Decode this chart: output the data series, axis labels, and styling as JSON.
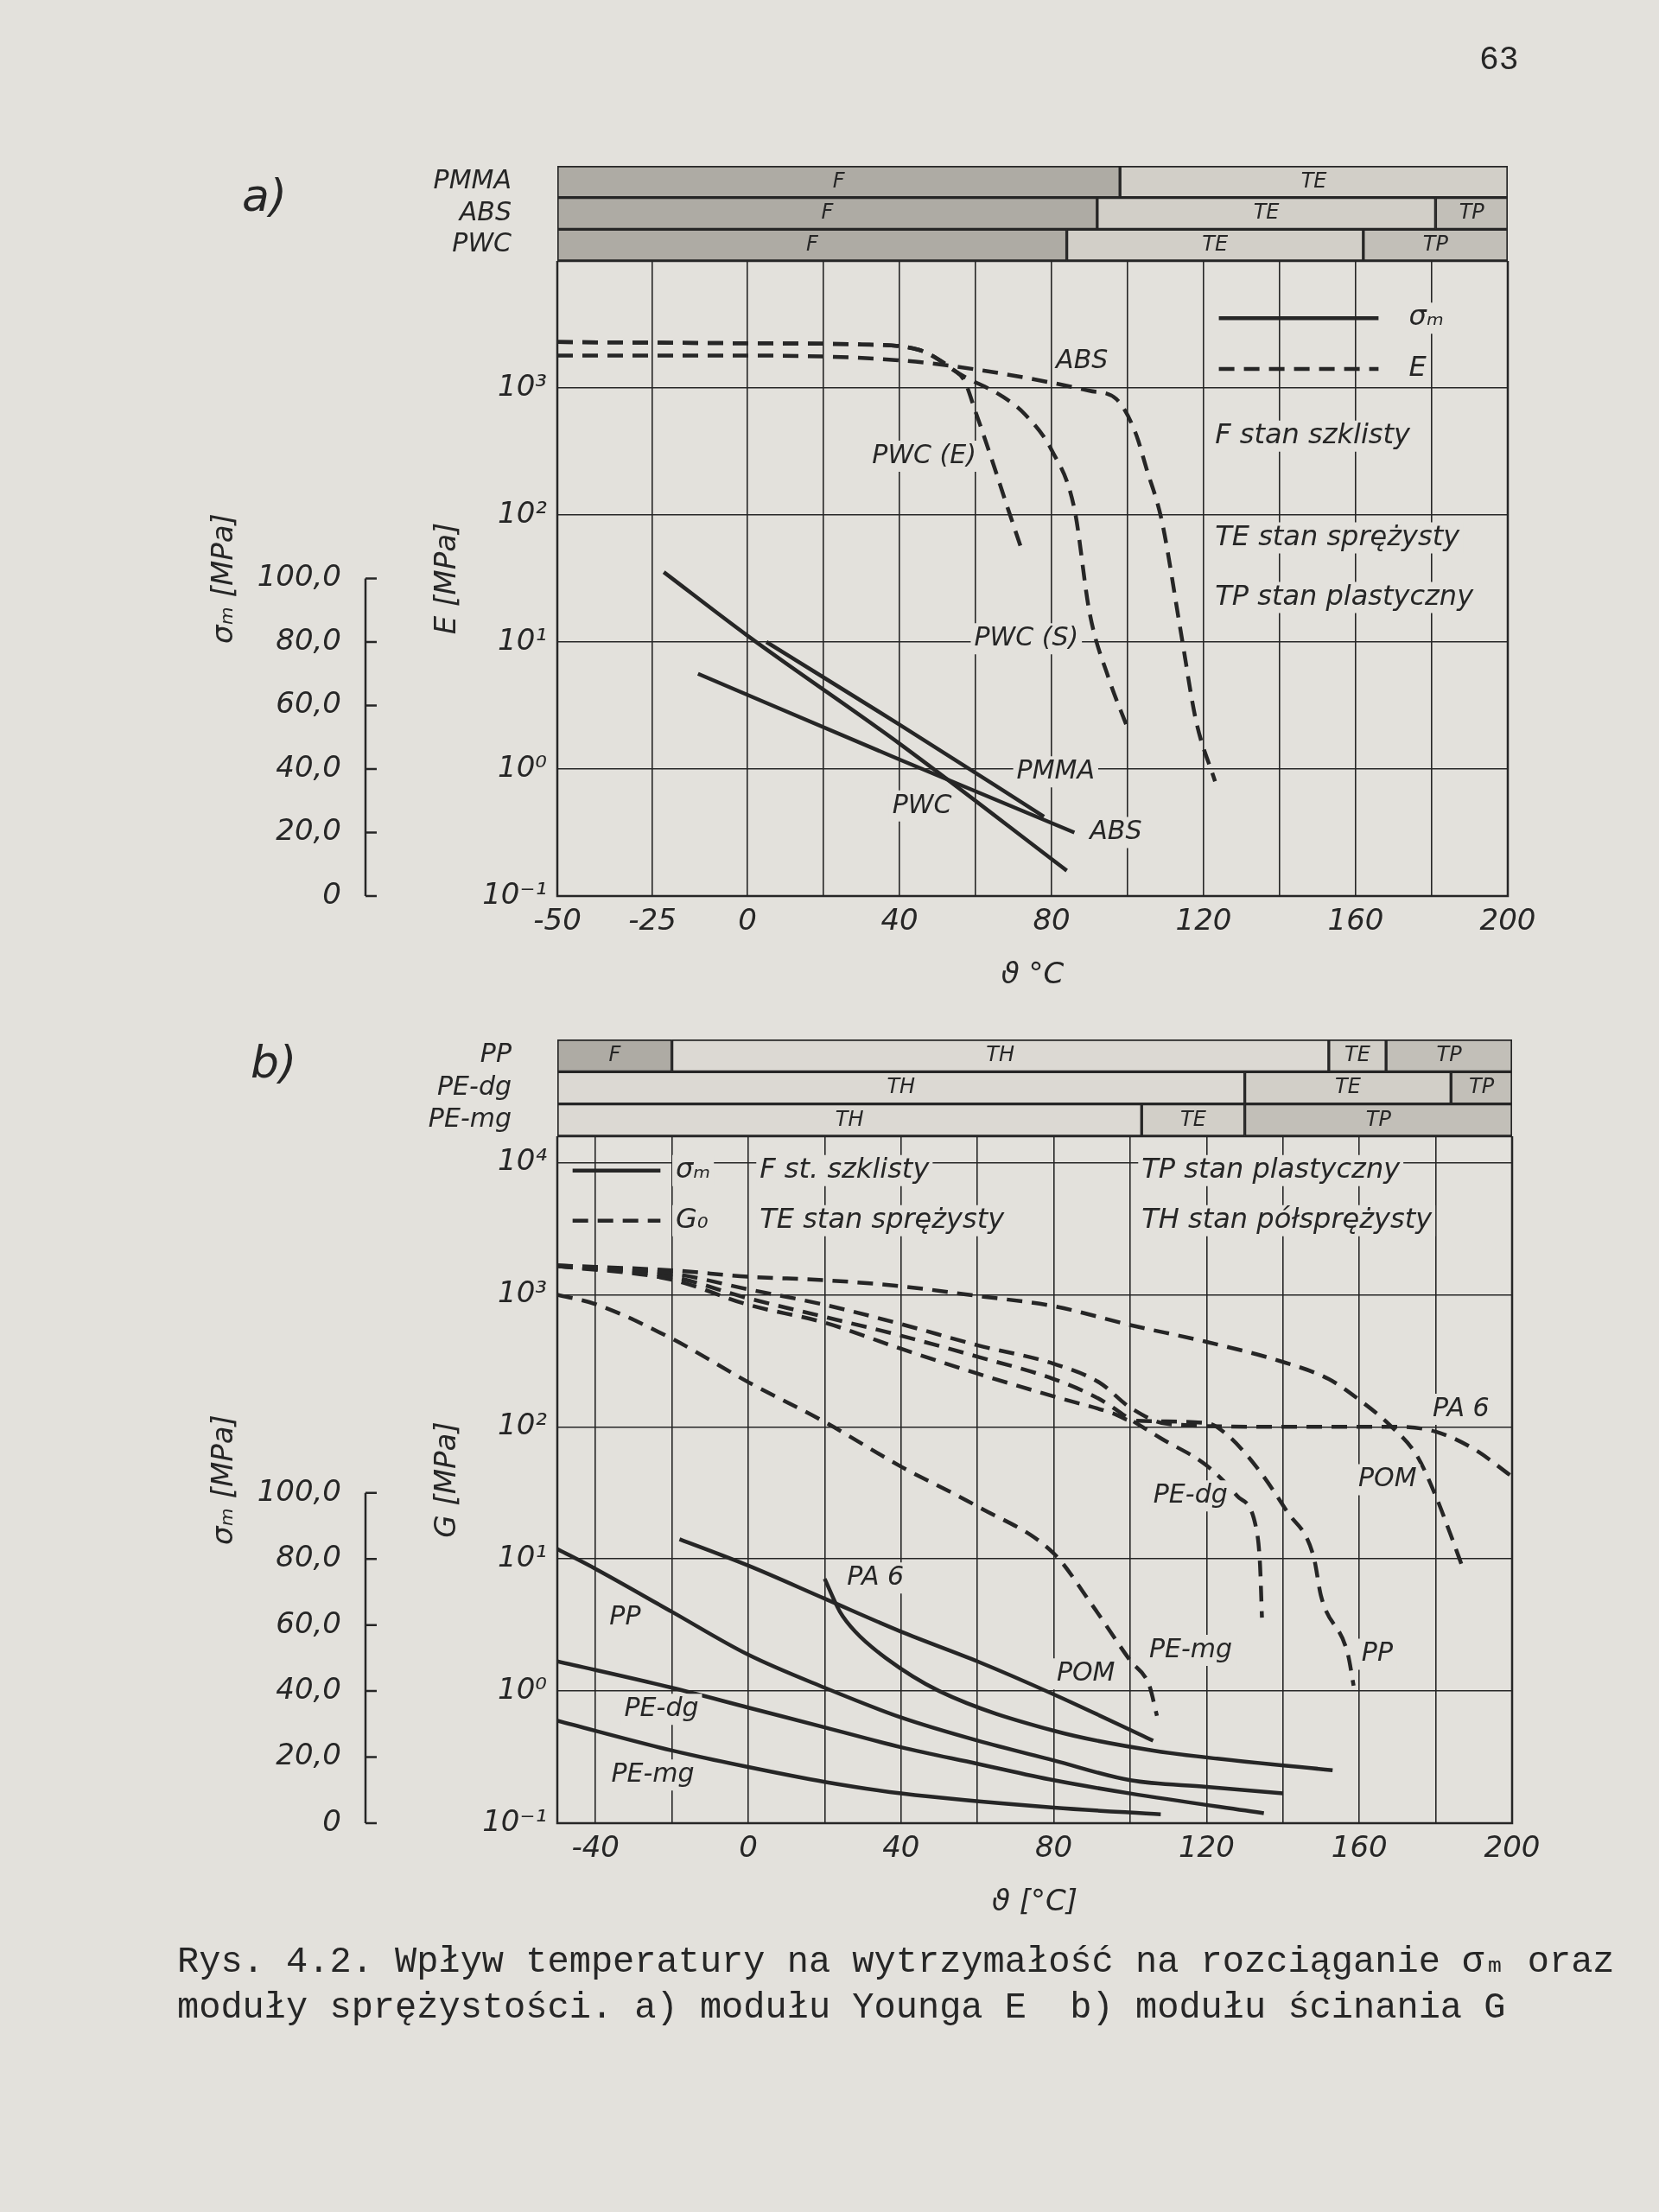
{
  "chart_data": [
    {
      "type": "bar",
      "orientation": "horizontal",
      "title": "a)",
      "annotations": [
        "63"
      ],
      "categories": [
        "PMMA",
        "ABS",
        "PWC"
      ],
      "series": [
        {
          "name": "F",
          "color": "#aeaba4",
          "values": [
            148,
            142,
            134
          ],
          "base": [
            -50,
            -50,
            -50
          ]
        },
        {
          "name": "TE",
          "color": "#d2cfc8",
          "values": [
            102,
            89,
            78
          ],
          "base": [
            98,
            92,
            84
          ]
        },
        {
          "name": "TP",
          "color": "#c2bfb8",
          "values": [
            null,
            19,
            38
          ],
          "base": [
            null,
            181,
            162
          ]
        }
      ],
      "xlim": [
        -50,
        200
      ],
      "tick_labels": "y"
    },
    {
      "type": "line",
      "xlabel": "ϑ °C",
      "ylabel": "E [MPa]",
      "y2label": "σₘ [MPa]",
      "annotations": [
        "σₘ",
        "E",
        "F stan szklisty",
        "TE stan sprężysty",
        "TP stan plastyczny"
      ],
      "series": [
        {
          "name": "PMMA",
          "color": "#262626",
          "axis": "y2",
          "line_style": "solid",
          "x": [
            5,
            40,
            78
          ],
          "values": [
            80,
            54,
            25
          ]
        },
        {
          "name": "ABS",
          "color": "#262626",
          "axis": "y2",
          "line_style": "solid",
          "x": [
            -13,
            40,
            86
          ],
          "values": [
            70,
            43,
            20
          ]
        },
        {
          "name": "PWC",
          "color": "#262626",
          "axis": "y2",
          "line_style": "solid",
          "x": [
            -22,
            0,
            40,
            84
          ],
          "values": [
            102,
            82,
            48,
            8
          ]
        },
        {
          "name": "ABS",
          "color": "#262626",
          "line_style": "dashed",
          "x": [
            -50,
            0,
            40,
            60,
            80,
            90,
            97,
            102,
            105,
            109,
            114,
            118,
            123
          ],
          "values": [
            1800,
            1800,
            1650,
            1400,
            1100,
            950,
            820,
            450,
            230,
            90,
            12,
            2.4,
            0.8
          ]
        },
        {
          "name": "PWC (E)",
          "color": "#262626",
          "line_style": "dashed",
          "x": [
            -50,
            0,
            30,
            45,
            50,
            54,
            57,
            60,
            64,
            68,
            72
          ],
          "values": [
            2300,
            2250,
            2200,
            2000,
            1700,
            1400,
            1150,
            650,
            290,
            125,
            55
          ]
        },
        {
          "name": "PWC (S)",
          "color": "#262626",
          "line_style": "dashed",
          "x": [
            -50,
            0,
            30,
            45,
            57,
            67,
            73,
            80,
            86,
            90,
            95,
            100
          ],
          "values": [
            2300,
            2250,
            2200,
            2000,
            1230,
            860,
            620,
            325,
            112,
            17,
            5.2,
            2.1
          ]
        }
      ],
      "xlim": [
        -50,
        200
      ],
      "xticks": [
        -50,
        -25,
        0,
        {
          "value": 20,
          "label": null
        },
        40,
        {
          "value": 60,
          "label": null
        },
        80,
        {
          "value": 100,
          "label": null
        },
        120,
        {
          "value": 140,
          "label": null
        },
        160,
        {
          "value": 180,
          "label": null
        },
        200
      ],
      "ylim": [
        0.1,
        10000
      ],
      "yticks": [
        {
          "value": 0.1,
          "label": "10⁻¹"
        },
        {
          "value": 1,
          "label": "10⁰"
        },
        {
          "value": 10,
          "label": "10¹"
        },
        {
          "value": 100,
          "label": "10²"
        },
        {
          "value": 1000,
          "label": "10³"
        }
      ],
      "y2lim": [
        0,
        200
      ],
      "y2ticks": [
        0,
        {
          "value": 20,
          "label": "20,0"
        },
        {
          "value": 40,
          "label": "40,0"
        },
        {
          "value": 60,
          "label": "60,0"
        },
        {
          "value": 80,
          "label": "80,0"
        },
        {
          "value": 100,
          "label": "100,0"
        }
      ],
      "log": "y",
      "grid": true,
      "marker": "none"
    },
    {
      "type": "bar",
      "orientation": "horizontal",
      "title": "b)",
      "categories": [
        "PP",
        "PE-dg",
        "PE-mg"
      ],
      "series": [
        {
          "name": "F",
          "color": "#aeaba4",
          "values": [
            30,
            null,
            null
          ],
          "base": [
            -50,
            null,
            null
          ]
        },
        {
          "name": "TH",
          "color": "#dcd9d3",
          "values": [
            172,
            180,
            153
          ],
          "base": [
            -20,
            -50,
            -50
          ]
        },
        {
          "name": "TE",
          "color": "#d2cfc8",
          "values": [
            15,
            54,
            27
          ],
          "base": [
            152,
            130,
            103
          ]
        },
        {
          "name": "TP",
          "color": "#c2bfb8",
          "values": [
            33,
            16,
            70
          ],
          "base": [
            167,
            184,
            130
          ]
        }
      ],
      "xlim": [
        -50,
        200
      ],
      "tick_labels": "y"
    },
    {
      "type": "line",
      "xlabel": "ϑ [°C]",
      "ylabel": "G [MPa]",
      "y2label": "σₘ [MPa]",
      "annotations": [
        "σₘ",
        "G₀",
        "F st. szklisty",
        "TE stan sprężysty",
        "TP stan plastyczny",
        "TH stan półsprężysty",
        "Rys. 4.2. Wpływ temperatury na wytrzymałość na rozciąganie σₘ oraz moduły sprężystości. a) modułu Younga E  b) modułu ścinania G"
      ],
      "series": [
        {
          "name": "PP",
          "color": "#262626",
          "axis": "y2",
          "line_style": "solid",
          "x": [
            -50,
            -40,
            -20,
            0,
            20,
            40,
            60,
            80,
            100,
            120,
            140
          ],
          "values": [
            83,
            77,
            64,
            51,
            41,
            32,
            25,
            19,
            13,
            11,
            9
          ]
        },
        {
          "name": "PE-dg",
          "color": "#262626",
          "axis": "y2",
          "line_style": "solid",
          "x": [
            -50,
            -20,
            0,
            20,
            40,
            60,
            80,
            100,
            135
          ],
          "values": [
            49,
            41,
            35,
            29,
            23,
            18,
            13,
            9,
            3
          ]
        },
        {
          "name": "PE-mg",
          "color": "#262626",
          "axis": "y2",
          "line_style": "solid",
          "x": [
            -50,
            -20,
            0,
            20,
            40,
            80,
            108
          ],
          "values": [
            31,
            22,
            17,
            12.5,
            9,
            4.7,
            2.7
          ]
        },
        {
          "name": "PA 6",
          "color": "#262626",
          "axis": "y2",
          "line_style": "solid",
          "x": [
            20,
            24,
            28,
            36,
            50,
            80,
            106,
            153
          ],
          "values": [
            74,
            64,
            58,
            50,
            40,
            28,
            22,
            16
          ]
        },
        {
          "name": "POM",
          "color": "#262626",
          "axis": "y2",
          "line_style": "solid",
          "x": [
            -18,
            0,
            20,
            40,
            60,
            80,
            106
          ],
          "values": [
            86,
            78,
            68,
            58,
            49,
            39,
            25
          ]
        },
        {
          "name": "PA 6",
          "color": "#262626",
          "line_style": "dashed",
          "x": [
            -50,
            -20,
            0,
            20,
            40,
            60,
            80,
            92,
            100,
            110,
            140,
            170,
            180,
            190,
            200
          ],
          "values": [
            1670,
            1450,
            1100,
            840,
            600,
            415,
            300,
            216,
            140,
            105,
            100,
            100,
            92,
            68,
            42
          ]
        },
        {
          "name": "POM",
          "color": "#262626",
          "line_style": "dashed",
          "x": [
            -50,
            -20,
            0,
            20,
            40,
            60,
            80,
            100,
            120,
            140,
            152,
            160,
            168,
            175,
            180,
            184,
            187
          ],
          "values": [
            1670,
            1530,
            1370,
            1290,
            1160,
            980,
            820,
            590,
            440,
            310,
            230,
            160,
            103,
            61,
            30,
            15,
            8.7
          ]
        },
        {
          "name": "PE-dg",
          "color": "#262626",
          "line_style": "dashed",
          "x": [
            -50,
            -20,
            0,
            20,
            40,
            60,
            80,
            92,
            100,
            108,
            120,
            128,
            133,
            134,
            134.5
          ],
          "values": [
            1650,
            1370,
            940,
            680,
            490,
            340,
            230,
            162,
            114,
            82,
            51,
            30,
            17,
            9,
            3.6
          ]
        },
        {
          "name": "PE-mg",
          "color": "#262626",
          "line_style": "dashed",
          "x": [
            -50,
            -40,
            -20,
            0,
            20,
            40,
            60,
            80,
            90,
            100,
            105,
            107
          ],
          "values": [
            1000,
            850,
            465,
            218,
            109,
            50,
            25,
            11,
            4.5,
            1.7,
            1.1,
            0.65
          ]
        },
        {
          "name": "PP",
          "color": "#262626",
          "line_style": "dashed",
          "x": [
            -50,
            -20,
            0,
            20,
            40,
            60,
            80,
            96,
            100,
            120,
            125,
            133,
            141,
            148,
            150,
            157,
            158.5
          ],
          "values": [
            1650,
            1300,
            840,
            615,
            390,
            253,
            170,
            125,
            112,
            107,
            89,
            50,
            23,
            10.5,
            5.2,
            1.9,
            1.1
          ]
        }
      ],
      "xlim": [
        -50,
        200
      ],
      "xticks": [
        -40,
        {
          "value": -20,
          "label": null
        },
        0,
        {
          "value": 20,
          "label": null
        },
        40,
        {
          "value": 60,
          "label": null
        },
        80,
        {
          "value": 100,
          "label": null
        },
        120,
        {
          "value": 140,
          "label": null
        },
        160,
        {
          "value": 180,
          "label": null
        },
        200
      ],
      "ylim": [
        0.1,
        15850
      ],
      "yticks": [
        {
          "value": 0.1,
          "label": "10⁻¹"
        },
        {
          "value": 1,
          "label": "10⁰"
        },
        {
          "value": 10,
          "label": "10¹"
        },
        {
          "value": 100,
          "label": "10²"
        },
        {
          "value": 1000,
          "label": "10³"
        },
        {
          "value": 10000,
          "label": "10⁴"
        }
      ],
      "y2lim": [
        0,
        208
      ],
      "y2ticks": [
        0,
        {
          "value": 20,
          "label": "20,0"
        },
        {
          "value": 40,
          "label": "40,0"
        },
        {
          "value": 60,
          "label": "60,0"
        },
        {
          "value": 80,
          "label": "80,0"
        },
        {
          "value": 100,
          "label": "100,0"
        }
      ],
      "log": "y",
      "grid": true,
      "marker": "none"
    }
  ]
}
